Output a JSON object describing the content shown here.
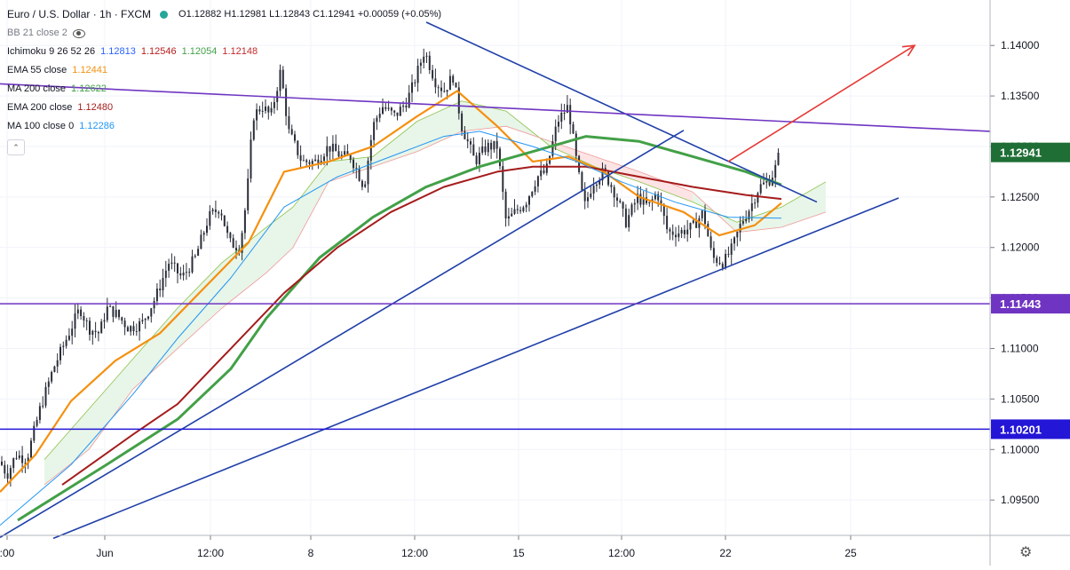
{
  "header": {
    "symbol": "Euro / U.S. Dollar · 1h · FXCM",
    "ohlc": "O1.12882 H1.12981 L1.12843 C1.12941 +0.00059 (+0.05%)"
  },
  "indicators": [
    {
      "name": "BB 21 close 2",
      "values": [],
      "colors": [],
      "label_color": "#787b86",
      "hidden": true
    },
    {
      "name": "Ichimoku 9 26 52 26",
      "values": [
        "1.12813",
        "1.12546",
        "1.12054",
        "1.12148"
      ],
      "colors": [
        "#2962ff",
        "#b71c1c",
        "#43a047",
        "#c62828"
      ]
    },
    {
      "name": "EMA 55 close",
      "values": [
        "1.12441"
      ],
      "colors": [
        "#f5900f"
      ]
    },
    {
      "name": "MA 200 close",
      "values": [
        "1.12622"
      ],
      "colors": [
        "#43a047"
      ]
    },
    {
      "name": "EMA 200 close",
      "values": [
        "1.12480"
      ],
      "colors": [
        "#a51c1c"
      ]
    },
    {
      "name": "MA 100 close 0",
      "values": [
        "1.12286"
      ],
      "colors": [
        "#2196f3"
      ]
    }
  ],
  "chart_data": {
    "type": "candlestick",
    "symbol": "EURUSD",
    "timeframe": "1h",
    "ylim": [
      1.0915,
      1.1445
    ],
    "y_ticks": [
      "1.14000",
      "1.13500",
      "1.13000",
      "1.12500",
      "1.12000",
      "1.11500",
      "1.11000",
      "1.10500",
      "1.10000",
      "1.09500"
    ],
    "x_ticks": [
      ":00",
      "Jun",
      "12:00",
      "8",
      "12:00",
      "15",
      "12:00",
      "22",
      "25"
    ],
    "price_badges": [
      {
        "label": "1.12941",
        "value": 1.12941,
        "color": "#1e6e35"
      },
      {
        "label": "1.11443",
        "value": 1.11443,
        "color": "#6f35c2"
      },
      {
        "label": "1.10201",
        "value": 1.10201,
        "color": "#2416d6"
      }
    ],
    "horizontal_levels": [
      {
        "value": 1.11443,
        "color": "#6f35c2"
      },
      {
        "value": 1.10201,
        "color": "#2416d6"
      }
    ],
    "price_path": [
      [
        0,
        1.0988
      ],
      [
        8,
        1.0975
      ],
      [
        18,
        1.0995
      ],
      [
        30,
        1.099
      ],
      [
        45,
        1.104
      ],
      [
        60,
        1.108
      ],
      [
        75,
        1.111
      ],
      [
        90,
        1.114
      ],
      [
        100,
        1.112
      ],
      [
        112,
        1.1115
      ],
      [
        120,
        1.114
      ],
      [
        130,
        1.1135
      ],
      [
        145,
        1.112
      ],
      [
        160,
        1.1125
      ],
      [
        175,
        1.115
      ],
      [
        190,
        1.1185
      ],
      [
        205,
        1.117
      ],
      [
        220,
        1.119
      ],
      [
        235,
        1.123
      ],
      [
        248,
        1.124
      ],
      [
        258,
        1.1205
      ],
      [
        270,
        1.12
      ],
      [
        278,
        1.125
      ],
      [
        285,
        1.133
      ],
      [
        295,
        1.134
      ],
      [
        305,
        1.133
      ],
      [
        316,
        1.1375
      ],
      [
        325,
        1.1315
      ],
      [
        340,
        1.1285
      ],
      [
        355,
        1.1285
      ],
      [
        370,
        1.13
      ],
      [
        385,
        1.129
      ],
      [
        395,
        1.129
      ],
      [
        410,
        1.126
      ],
      [
        420,
        1.132
      ],
      [
        430,
        1.134
      ],
      [
        445,
        1.133
      ],
      [
        458,
        1.1345
      ],
      [
        465,
        1.136
      ],
      [
        478,
        1.1395
      ],
      [
        490,
        1.1365
      ],
      [
        500,
        1.1355
      ],
      [
        510,
        1.137
      ],
      [
        520,
        1.132
      ],
      [
        535,
        1.1285
      ],
      [
        548,
        1.13
      ],
      [
        560,
        1.13
      ],
      [
        570,
        1.1225
      ],
      [
        580,
        1.1235
      ],
      [
        592,
        1.1245
      ],
      [
        605,
        1.127
      ],
      [
        615,
        1.1275
      ],
      [
        628,
        1.1325
      ],
      [
        640,
        1.134
      ],
      [
        650,
        1.128
      ],
      [
        658,
        1.124
      ],
      [
        668,
        1.1265
      ],
      [
        680,
        1.1275
      ],
      [
        692,
        1.1255
      ],
      [
        705,
        1.1225
      ],
      [
        718,
        1.125
      ],
      [
        730,
        1.124
      ],
      [
        740,
        1.1255
      ],
      [
        752,
        1.1215
      ],
      [
        765,
        1.1215
      ],
      [
        780,
        1.122
      ],
      [
        792,
        1.1235
      ],
      [
        802,
        1.119
      ],
      [
        815,
        1.1185
      ],
      [
        825,
        1.12
      ],
      [
        835,
        1.1225
      ],
      [
        845,
        1.124
      ],
      [
        855,
        1.126
      ],
      [
        865,
        1.1265
      ],
      [
        872,
        1.1275
      ],
      [
        878,
        1.1294
      ]
    ],
    "series": [
      {
        "name": "EMA 55 close",
        "color": "#f5900f",
        "width": 2.2,
        "points": [
          [
            0,
            1.0958
          ],
          [
            40,
            1.0995
          ],
          [
            80,
            1.1048
          ],
          [
            130,
            1.1088
          ],
          [
            180,
            1.1115
          ],
          [
            230,
            1.116
          ],
          [
            280,
            1.1205
          ],
          [
            320,
            1.1275
          ],
          [
            370,
            1.1285
          ],
          [
            420,
            1.13
          ],
          [
            470,
            1.133
          ],
          [
            515,
            1.1355
          ],
          [
            560,
            1.132
          ],
          [
            600,
            1.1285
          ],
          [
            640,
            1.129
          ],
          [
            680,
            1.1275
          ],
          [
            720,
            1.125
          ],
          [
            770,
            1.1235
          ],
          [
            810,
            1.1212
          ],
          [
            850,
            1.1222
          ],
          [
            880,
            1.1244
          ]
        ]
      },
      {
        "name": "MA 200 close",
        "color": "#43a047",
        "width": 3,
        "points": [
          [
            20,
            1.093
          ],
          [
            120,
            1.0985
          ],
          [
            200,
            1.103
          ],
          [
            260,
            1.108
          ],
          [
            300,
            1.113
          ],
          [
            360,
            1.119
          ],
          [
            420,
            1.123
          ],
          [
            480,
            1.126
          ],
          [
            540,
            1.128
          ],
          [
            600,
            1.1295
          ],
          [
            660,
            1.131
          ],
          [
            720,
            1.1305
          ],
          [
            780,
            1.129
          ],
          [
            840,
            1.1275
          ],
          [
            880,
            1.1262
          ]
        ]
      },
      {
        "name": "EMA 200 close",
        "color": "#a51c1c",
        "width": 2,
        "points": [
          [
            70,
            1.0965
          ],
          [
            150,
            1.1015
          ],
          [
            200,
            1.1045
          ],
          [
            260,
            1.11
          ],
          [
            320,
            1.1155
          ],
          [
            380,
            1.12
          ],
          [
            440,
            1.1235
          ],
          [
            500,
            1.126
          ],
          [
            560,
            1.1275
          ],
          [
            600,
            1.128
          ],
          [
            660,
            1.128
          ],
          [
            720,
            1.127
          ],
          [
            780,
            1.126
          ],
          [
            840,
            1.1252
          ],
          [
            880,
            1.1248
          ]
        ]
      },
      {
        "name": "MA 100 close 0",
        "color": "#2196f3",
        "width": 1,
        "points": [
          [
            0,
            1.0925
          ],
          [
            80,
            1.0985
          ],
          [
            150,
            1.1055
          ],
          [
            200,
            1.111
          ],
          [
            260,
            1.117
          ],
          [
            320,
            1.124
          ],
          [
            380,
            1.127
          ],
          [
            440,
            1.129
          ],
          [
            500,
            1.131
          ],
          [
            540,
            1.1315
          ],
          [
            600,
            1.13
          ],
          [
            650,
            1.1285
          ],
          [
            700,
            1.1265
          ],
          [
            760,
            1.1245
          ],
          [
            820,
            1.123
          ],
          [
            880,
            1.1229
          ]
        ]
      }
    ],
    "ichimoku_cloud": {
      "span_a": [
        [
          50,
          1.099
        ],
        [
          100,
          1.104
        ],
        [
          150,
          1.109
        ],
        [
          200,
          1.114
        ],
        [
          250,
          1.1185
        ],
        [
          300,
          1.122
        ],
        [
          330,
          1.124
        ],
        [
          370,
          1.1285
        ],
        [
          420,
          1.129
        ],
        [
          470,
          1.1325
        ],
        [
          520,
          1.1345
        ],
        [
          570,
          1.1335
        ],
        [
          620,
          1.13
        ],
        [
          670,
          1.128
        ],
        [
          720,
          1.1265
        ],
        [
          780,
          1.1245
        ],
        [
          830,
          1.1225
        ],
        [
          880,
          1.124
        ],
        [
          930,
          1.1265
        ]
      ],
      "span_b": [
        [
          50,
          1.0965
        ],
        [
          100,
          1.1
        ],
        [
          150,
          1.106
        ],
        [
          200,
          1.11
        ],
        [
          250,
          1.114
        ],
        [
          300,
          1.1175
        ],
        [
          330,
          1.12
        ],
        [
          370,
          1.1265
        ],
        [
          420,
          1.128
        ],
        [
          470,
          1.1295
        ],
        [
          520,
          1.1315
        ],
        [
          570,
          1.132
        ],
        [
          620,
          1.1305
        ],
        [
          670,
          1.129
        ],
        [
          720,
          1.1275
        ],
        [
          780,
          1.1255
        ],
        [
          830,
          1.1215
        ],
        [
          880,
          1.122
        ],
        [
          930,
          1.1235
        ]
      ],
      "bull_color": "#e8f5e9",
      "bear_color": "#fde4e4"
    },
    "trendlines": [
      {
        "from": [
          480,
          1.1423
        ],
        "to": [
          920,
          1.1245
        ],
        "color": "#1f3fa8"
      },
      {
        "from": [
          0,
          1.0913
        ],
        "to": [
          770,
          1.1316
        ],
        "color": "#1f3fa8"
      },
      {
        "from": [
          60,
          1.0912
        ],
        "to": [
          1012,
          1.1249
        ],
        "color": "#1f3fa8"
      },
      {
        "from": [
          0,
          1.1362
        ],
        "to": [
          1115,
          1.1315
        ],
        "color": "#6f35c2"
      }
    ],
    "projection_arrow": {
      "from": [
        820,
        1.1285
      ],
      "to": [
        1030,
        1.14
      ],
      "color": "#e53935"
    }
  }
}
